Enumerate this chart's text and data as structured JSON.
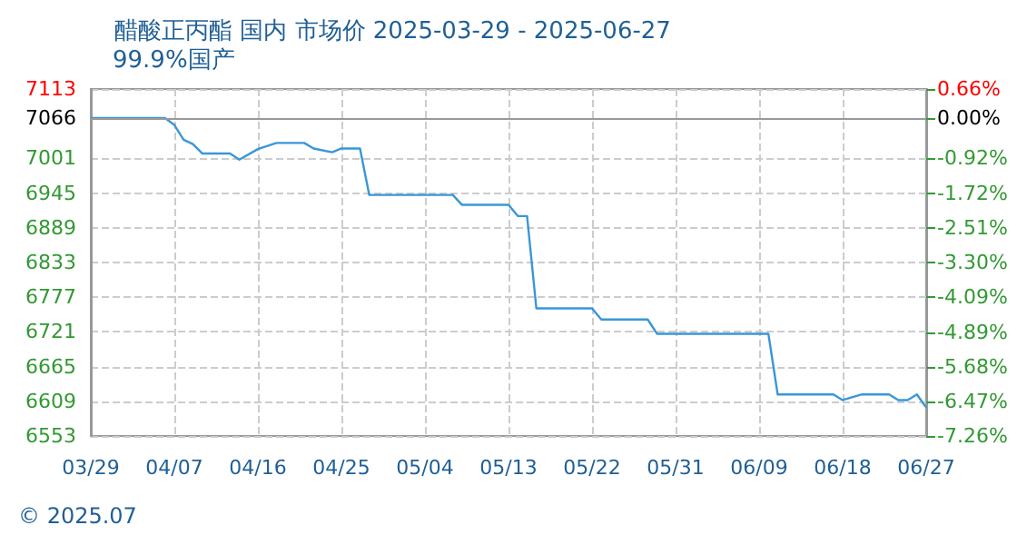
{
  "chart_data": {
    "type": "line",
    "title": "醋酸正丙酯 国内 市场价 2025-03-29 - 2025-06-27",
    "subtitle": "99.9%国产",
    "annotations": [
      "© 2025.07"
    ],
    "x": [
      "--03-29",
      "--04-06",
      "--04-07",
      "--04-08",
      "--04-09",
      "--04-10",
      "--04-13",
      "--04-14",
      "--04-16",
      "--04-18",
      "--04-21",
      "--04-22",
      "--04-24",
      "--04-25",
      "--04-27",
      "--04-28",
      "--05-07",
      "--05-08",
      "--05-13",
      "--05-14",
      "--05-15",
      "--05-16",
      "--05-22",
      "--05-23",
      "--05-28",
      "--05-29",
      "--06-10",
      "--06-11",
      "--06-17",
      "--06-18",
      "--06-20",
      "--06-23",
      "--06-24",
      "--06-25",
      "--06-26",
      "--06-27"
    ],
    "series": [
      {
        "color": "#3a96d8",
        "values": [
          7066,
          7066,
          7055,
          7031,
          7024,
          7009,
          7009,
          6999,
          7016,
          7026,
          7026,
          7017,
          7011,
          7017,
          7017,
          6942,
          6942,
          6926,
          6926,
          6908,
          6908,
          6759,
          6759,
          6741,
          6741,
          6718,
          6718,
          6620,
          6620,
          6611,
          6620,
          6620,
          6611,
          6611,
          6620,
          6599
        ]
      }
    ],
    "xlim": [
      "--03-29",
      "--06-27"
    ],
    "xticks": [
      {
        "value": "--03-29",
        "label": "03/29"
      },
      {
        "value": "--04-07",
        "label": "04/07"
      },
      {
        "value": "--04-16",
        "label": "04/16"
      },
      {
        "value": "--04-25",
        "label": "04/25"
      },
      {
        "value": "--05-04",
        "label": "05/04"
      },
      {
        "value": "--05-13",
        "label": "05/13"
      },
      {
        "value": "--05-22",
        "label": "05/22"
      },
      {
        "value": "--05-31",
        "label": "05/31"
      },
      {
        "value": "--06-09",
        "label": "06/09"
      },
      {
        "value": "--06-18",
        "label": "06/18"
      },
      {
        "value": "--06-27",
        "label": "06/27"
      }
    ],
    "ylim": [
      6553,
      7113
    ],
    "yticks": [
      7113,
      7066,
      7001,
      6945,
      6889,
      6833,
      6777,
      6721,
      6665,
      6609,
      6553
    ],
    "y2lim": [
      -7.26,
      0.66
    ],
    "y2ticks": [
      {
        "value": 0.66,
        "label": "0.66%"
      },
      {
        "value": 0.0,
        "label": "0.00%"
      },
      {
        "value": -0.92,
        "label": "-0.92%"
      },
      {
        "value": -1.72,
        "label": "-1.72%"
      },
      {
        "value": -2.51,
        "label": "-2.51%"
      },
      {
        "value": -3.3,
        "label": "-3.30%"
      },
      {
        "value": -4.09,
        "label": "-4.09%"
      },
      {
        "value": -4.89,
        "label": "-4.89%"
      },
      {
        "value": -5.68,
        "label": "-5.68%"
      },
      {
        "value": -6.47,
        "label": "-6.47%"
      },
      {
        "value": -7.26,
        "label": "-7.26%"
      }
    ],
    "ref_lines": [
      {
        "axis": "y",
        "value": 7066,
        "color": "#999999",
        "line_style": "solid"
      }
    ],
    "grid": true,
    "marker": "none",
    "line_style": "solid"
  }
}
